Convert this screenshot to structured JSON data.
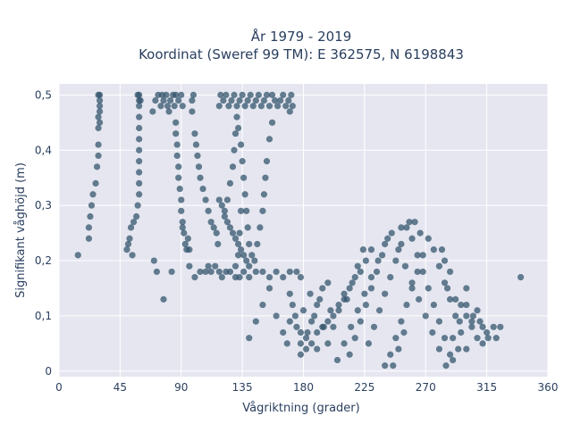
{
  "chart_data": {
    "type": "scatter",
    "title": "År 1979 - 2019",
    "subtitle": "Koordinat (Sweref 99 TM): E 362575, N 6198843",
    "xlabel": "Vågriktning (grader)",
    "ylabel": "Signifikant våghöjd (m)",
    "xlim": [
      0,
      360
    ],
    "ylim": [
      -0.01,
      0.52
    ],
    "x_ticks": [
      0,
      45,
      90,
      135,
      180,
      225,
      270,
      315,
      360
    ],
    "x_tick_labels": [
      "0",
      "45",
      "90",
      "135",
      "180",
      "225",
      "270",
      "315",
      "360"
    ],
    "y_ticks": [
      0,
      0.1,
      0.2,
      0.3,
      0.4,
      0.5
    ],
    "y_tick_labels": [
      "0",
      "0,1",
      "0,2",
      "0,3",
      "0,4",
      "0,5"
    ],
    "grid": true,
    "legend": "none",
    "marker_color": "#34566d",
    "plot_bg": "#e5e6f0",
    "points": [
      [
        14,
        0.21
      ],
      [
        22,
        0.24
      ],
      [
        22,
        0.26
      ],
      [
        23,
        0.28
      ],
      [
        24,
        0.3
      ],
      [
        25,
        0.32
      ],
      [
        27,
        0.34
      ],
      [
        28,
        0.37
      ],
      [
        29,
        0.39
      ],
      [
        29,
        0.41
      ],
      [
        29,
        0.44
      ],
      [
        29,
        0.46
      ],
      [
        30,
        0.48
      ],
      [
        30,
        0.49
      ],
      [
        30,
        0.5
      ],
      [
        29,
        0.5
      ],
      [
        30,
        0.47
      ],
      [
        30,
        0.45
      ],
      [
        50,
        0.22
      ],
      [
        51,
        0.23
      ],
      [
        52,
        0.24
      ],
      [
        53,
        0.26
      ],
      [
        55,
        0.27
      ],
      [
        57,
        0.28
      ],
      [
        58,
        0.3
      ],
      [
        59,
        0.32
      ],
      [
        59,
        0.34
      ],
      [
        59,
        0.36
      ],
      [
        59,
        0.38
      ],
      [
        59,
        0.4
      ],
      [
        59,
        0.42
      ],
      [
        59,
        0.44
      ],
      [
        59,
        0.46
      ],
      [
        59,
        0.48
      ],
      [
        59,
        0.49
      ],
      [
        59,
        0.5
      ],
      [
        58,
        0.5
      ],
      [
        60,
        0.49
      ],
      [
        54,
        0.21
      ],
      [
        70,
        0.2
      ],
      [
        72,
        0.18
      ],
      [
        77,
        0.13
      ],
      [
        83,
        0.18
      ],
      [
        69,
        0.47
      ],
      [
        71,
        0.49
      ],
      [
        73,
        0.5
      ],
      [
        75,
        0.48
      ],
      [
        77,
        0.49
      ],
      [
        79,
        0.5
      ],
      [
        81,
        0.47
      ],
      [
        82,
        0.49
      ],
      [
        84,
        0.5
      ],
      [
        85,
        0.48
      ],
      [
        86,
        0.5
      ],
      [
        88,
        0.49
      ],
      [
        90,
        0.5
      ],
      [
        91,
        0.48
      ],
      [
        76,
        0.5
      ],
      [
        80,
        0.48
      ],
      [
        86,
        0.45
      ],
      [
        86,
        0.43
      ],
      [
        87,
        0.41
      ],
      [
        87,
        0.39
      ],
      [
        88,
        0.37
      ],
      [
        88,
        0.35
      ],
      [
        89,
        0.33
      ],
      [
        90,
        0.31
      ],
      [
        90,
        0.29
      ],
      [
        91,
        0.27
      ],
      [
        92,
        0.25
      ],
      [
        93,
        0.23
      ],
      [
        94,
        0.22
      ],
      [
        96,
        0.22
      ],
      [
        95,
        0.24
      ],
      [
        91,
        0.26
      ],
      [
        96,
        0.19
      ],
      [
        100,
        0.17
      ],
      [
        104,
        0.18
      ],
      [
        108,
        0.18
      ],
      [
        110,
        0.19
      ],
      [
        112,
        0.18
      ],
      [
        115,
        0.19
      ],
      [
        118,
        0.18
      ],
      [
        120,
        0.17
      ],
      [
        123,
        0.18
      ],
      [
        126,
        0.18
      ],
      [
        130,
        0.17
      ],
      [
        133,
        0.17
      ],
      [
        136,
        0.18
      ],
      [
        140,
        0.17
      ],
      [
        145,
        0.18
      ],
      [
        150,
        0.18
      ],
      [
        155,
        0.17
      ],
      [
        160,
        0.18
      ],
      [
        165,
        0.17
      ],
      [
        170,
        0.18
      ],
      [
        175,
        0.18
      ],
      [
        178,
        0.17
      ],
      [
        98,
        0.47
      ],
      [
        98,
        0.49
      ],
      [
        99,
        0.5
      ],
      [
        100,
        0.43
      ],
      [
        101,
        0.41
      ],
      [
        102,
        0.39
      ],
      [
        103,
        0.37
      ],
      [
        104,
        0.35
      ],
      [
        106,
        0.33
      ],
      [
        108,
        0.31
      ],
      [
        110,
        0.29
      ],
      [
        112,
        0.27
      ],
      [
        114,
        0.26
      ],
      [
        116,
        0.25
      ],
      [
        117,
        0.23
      ],
      [
        118,
        0.48
      ],
      [
        119,
        0.5
      ],
      [
        121,
        0.49
      ],
      [
        123,
        0.5
      ],
      [
        125,
        0.48
      ],
      [
        127,
        0.49
      ],
      [
        129,
        0.5
      ],
      [
        131,
        0.48
      ],
      [
        133,
        0.49
      ],
      [
        135,
        0.5
      ],
      [
        137,
        0.48
      ],
      [
        139,
        0.49
      ],
      [
        141,
        0.5
      ],
      [
        143,
        0.48
      ],
      [
        145,
        0.49
      ],
      [
        147,
        0.5
      ],
      [
        149,
        0.48
      ],
      [
        151,
        0.49
      ],
      [
        153,
        0.5
      ],
      [
        155,
        0.48
      ],
      [
        157,
        0.5
      ],
      [
        159,
        0.49
      ],
      [
        161,
        0.48
      ],
      [
        163,
        0.49
      ],
      [
        165,
        0.5
      ],
      [
        167,
        0.48
      ],
      [
        169,
        0.49
      ],
      [
        171,
        0.5
      ],
      [
        172,
        0.48
      ],
      [
        170,
        0.47
      ],
      [
        118,
        0.31
      ],
      [
        120,
        0.3
      ],
      [
        122,
        0.29
      ],
      [
        124,
        0.27
      ],
      [
        126,
        0.26
      ],
      [
        128,
        0.25
      ],
      [
        130,
        0.24
      ],
      [
        132,
        0.23
      ],
      [
        134,
        0.22
      ],
      [
        136,
        0.21
      ],
      [
        138,
        0.2
      ],
      [
        140,
        0.19
      ],
      [
        142,
        0.21
      ],
      [
        144,
        0.2
      ],
      [
        146,
        0.23
      ],
      [
        148,
        0.26
      ],
      [
        150,
        0.29
      ],
      [
        151,
        0.32
      ],
      [
        152,
        0.35
      ],
      [
        153,
        0.38
      ],
      [
        155,
        0.42
      ],
      [
        157,
        0.45
      ],
      [
        122,
        0.28
      ],
      [
        124,
        0.31
      ],
      [
        126,
        0.34
      ],
      [
        128,
        0.37
      ],
      [
        129,
        0.4
      ],
      [
        130,
        0.43
      ],
      [
        131,
        0.46
      ],
      [
        132,
        0.44
      ],
      [
        134,
        0.41
      ],
      [
        135,
        0.38
      ],
      [
        136,
        0.35
      ],
      [
        137,
        0.32
      ],
      [
        138,
        0.29
      ],
      [
        139,
        0.26
      ],
      [
        140,
        0.23
      ],
      [
        134,
        0.29
      ],
      [
        133,
        0.25
      ],
      [
        132,
        0.21
      ],
      [
        130,
        0.19
      ],
      [
        140,
        0.06
      ],
      [
        145,
        0.09
      ],
      [
        150,
        0.12
      ],
      [
        155,
        0.15
      ],
      [
        160,
        0.1
      ],
      [
        165,
        0.07
      ],
      [
        168,
        0.05
      ],
      [
        170,
        0.09
      ],
      [
        172,
        0.12
      ],
      [
        175,
        0.08
      ],
      [
        178,
        0.05
      ],
      [
        180,
        0.11
      ],
      [
        183,
        0.07
      ],
      [
        185,
        0.14
      ],
      [
        188,
        0.1
      ],
      [
        190,
        0.04
      ],
      [
        192,
        0.13
      ],
      [
        195,
        0.08
      ],
      [
        198,
        0.16
      ],
      [
        200,
        0.11
      ],
      [
        178,
        0.03
      ],
      [
        182,
        0.06
      ],
      [
        186,
        0.09
      ],
      [
        190,
        0.12
      ],
      [
        194,
        0.15
      ],
      [
        198,
        0.05
      ],
      [
        202,
        0.08
      ],
      [
        206,
        0.11
      ],
      [
        210,
        0.14
      ],
      [
        214,
        0.03
      ],
      [
        218,
        0.06
      ],
      [
        222,
        0.09
      ],
      [
        226,
        0.12
      ],
      [
        230,
        0.15
      ],
      [
        234,
        0.18
      ],
      [
        238,
        0.21
      ],
      [
        242,
        0.24
      ],
      [
        246,
        0.01
      ],
      [
        250,
        0.04
      ],
      [
        254,
        0.07
      ],
      [
        205,
        0.02
      ],
      [
        210,
        0.05
      ],
      [
        215,
        0.08
      ],
      [
        220,
        0.11
      ],
      [
        225,
        0.14
      ],
      [
        230,
        0.17
      ],
      [
        235,
        0.2
      ],
      [
        240,
        0.23
      ],
      [
        245,
        0.25
      ],
      [
        250,
        0.22
      ],
      [
        255,
        0.19
      ],
      [
        260,
        0.16
      ],
      [
        265,
        0.13
      ],
      [
        270,
        0.1
      ],
      [
        275,
        0.07
      ],
      [
        280,
        0.04
      ],
      [
        285,
        0.01
      ],
      [
        290,
        0.06
      ],
      [
        295,
        0.09
      ],
      [
        300,
        0.12
      ],
      [
        212,
        0.13
      ],
      [
        216,
        0.16
      ],
      [
        220,
        0.19
      ],
      [
        224,
        0.22
      ],
      [
        228,
        0.05
      ],
      [
        232,
        0.08
      ],
      [
        236,
        0.11
      ],
      [
        240,
        0.14
      ],
      [
        244,
        0.17
      ],
      [
        248,
        0.2
      ],
      [
        252,
        0.23
      ],
      [
        256,
        0.26
      ],
      [
        260,
        0.24
      ],
      [
        264,
        0.21
      ],
      [
        268,
        0.18
      ],
      [
        272,
        0.15
      ],
      [
        276,
        0.12
      ],
      [
        280,
        0.09
      ],
      [
        284,
        0.06
      ],
      [
        288,
        0.03
      ],
      [
        240,
        0.01
      ],
      [
        244,
        0.03
      ],
      [
        248,
        0.06
      ],
      [
        252,
        0.09
      ],
      [
        256,
        0.12
      ],
      [
        260,
        0.15
      ],
      [
        264,
        0.18
      ],
      [
        268,
        0.21
      ],
      [
        272,
        0.24
      ],
      [
        276,
        0.22
      ],
      [
        280,
        0.19
      ],
      [
        284,
        0.16
      ],
      [
        288,
        0.13
      ],
      [
        292,
        0.1
      ],
      [
        296,
        0.07
      ],
      [
        300,
        0.04
      ],
      [
        304,
        0.08
      ],
      [
        308,
        0.11
      ],
      [
        312,
        0.08
      ],
      [
        316,
        0.06
      ],
      [
        258,
        0.27
      ],
      [
        262,
        0.27
      ],
      [
        252,
        0.26
      ],
      [
        266,
        0.25
      ],
      [
        230,
        0.22
      ],
      [
        226,
        0.2
      ],
      [
        222,
        0.18
      ],
      [
        218,
        0.17
      ],
      [
        214,
        0.15
      ],
      [
        210,
        0.13
      ],
      [
        206,
        0.12
      ],
      [
        202,
        0.1
      ],
      [
        198,
        0.09
      ],
      [
        194,
        0.08
      ],
      [
        190,
        0.07
      ],
      [
        186,
        0.05
      ],
      [
        182,
        0.04
      ],
      [
        178,
        0.07
      ],
      [
        174,
        0.1
      ],
      [
        170,
        0.14
      ],
      [
        300,
        0.15
      ],
      [
        305,
        0.1
      ],
      [
        310,
        0.09
      ],
      [
        315,
        0.07
      ],
      [
        320,
        0.08
      ],
      [
        322,
        0.06
      ],
      [
        325,
        0.08
      ],
      [
        340,
        0.17
      ],
      [
        292,
        0.13
      ],
      [
        296,
        0.12
      ],
      [
        300,
        0.1
      ],
      [
        304,
        0.09
      ],
      [
        308,
        0.06
      ],
      [
        312,
        0.05
      ],
      [
        288,
        0.18
      ],
      [
        284,
        0.2
      ],
      [
        282,
        0.22
      ],
      [
        286,
        0.15
      ],
      [
        290,
        0.02
      ],
      [
        294,
        0.04
      ]
    ]
  }
}
